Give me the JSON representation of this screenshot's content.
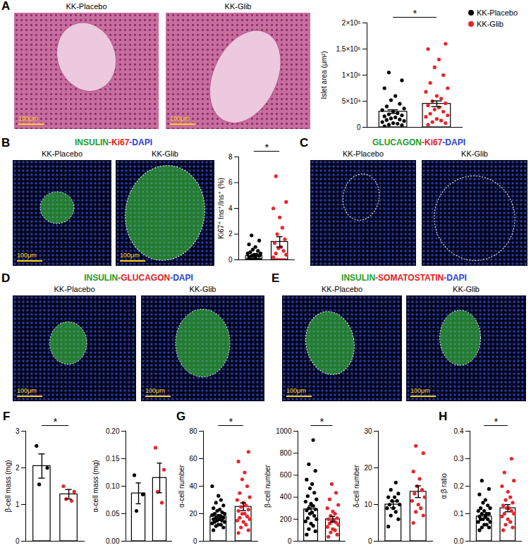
{
  "image_panels": [
    {
      "panel": "A",
      "stain": null,
      "images": [
        {
          "label": "KK-Placebo",
          "scale_bar": "100μm"
        },
        {
          "label": "KK-Glib",
          "scale_bar": "100μm"
        }
      ]
    },
    {
      "panel": "B",
      "stain": [
        {
          "text": "INSULIN",
          "color": "#1f9e1f"
        },
        {
          "text": "-Ki67",
          "color": "#e0201e"
        },
        {
          "text": "-DAPI",
          "color": "#2b3fd6"
        }
      ],
      "images": [
        {
          "label": "KK-Placebo",
          "scale_bar": "100μm"
        },
        {
          "label": "KK-Glib",
          "scale_bar": "100μm"
        }
      ]
    },
    {
      "panel": "C",
      "stain": [
        {
          "text": "GLUCAGON",
          "color": "#1f9e1f"
        },
        {
          "text": "-Ki67",
          "color": "#e0201e"
        },
        {
          "text": "-DAPI",
          "color": "#2b3fd6"
        }
      ],
      "images": [
        {
          "label": "KK-Placebo",
          "scale_bar": null
        },
        {
          "label": "KK-Glib",
          "scale_bar": null
        }
      ]
    },
    {
      "panel": "D",
      "stain": [
        {
          "text": "INSULIN",
          "color": "#1f9e1f"
        },
        {
          "text": "-GLUCAGON",
          "color": "#e0201e"
        },
        {
          "text": "-DAPI",
          "color": "#2b3fd6"
        }
      ],
      "images": [
        {
          "label": "KK-Placebo",
          "scale_bar": "100μm"
        },
        {
          "label": "KK-Glib",
          "scale_bar": "100μm"
        }
      ]
    },
    {
      "panel": "E",
      "stain": [
        {
          "text": "INSULIN",
          "color": "#1f9e1f"
        },
        {
          "text": "-SOMATOSTATIN",
          "color": "#e0201e"
        },
        {
          "text": "-DAPI",
          "color": "#2b3fd6"
        }
      ],
      "images": [
        {
          "label": "KK-Placebo",
          "scale_bar": "100μm"
        },
        {
          "label": "KK-Glib",
          "scale_bar": "100μm"
        }
      ]
    }
  ],
  "chart_data": [
    {
      "type": "bar",
      "ylabel": "Islet area (μm²)",
      "categories": [
        null,
        null
      ],
      "tick_labels": "y",
      "colors": [
        "#000000",
        "#e8252b"
      ],
      "legend": "right",
      "legend_labels": [
        "KK-Placebo",
        "KK-Glib"
      ],
      "values": [
        30000,
        45000
      ],
      "errors": [
        3500,
        5500
      ],
      "points": [
        [
          2000,
          4000,
          5000,
          7000,
          8000,
          10000,
          12000,
          14000,
          15000,
          17000,
          19000,
          21000,
          23000,
          25000,
          27000,
          30000,
          33000,
          36000,
          40000,
          45000,
          52000,
          60000,
          75000,
          90000,
          105000
        ],
        [
          5000,
          8000,
          10000,
          13000,
          16000,
          20000,
          23000,
          26000,
          30000,
          34000,
          38000,
          42000,
          46000,
          50000,
          55000,
          60000,
          68000,
          75000,
          85000,
          100000,
          115000,
          130000,
          150000,
          160000
        ]
      ],
      "ylim": [
        0,
        200000
      ],
      "yticks": [
        0,
        {
          "value": 50000,
          "label": "5×10⁴"
        },
        {
          "value": 100000,
          "label": "1×10⁵"
        },
        {
          "value": 150000,
          "label": "1.5×10⁵"
        },
        {
          "value": 200000,
          "label": "2×10⁵"
        }
      ],
      "annotation": "*"
    },
    {
      "type": "bar",
      "ylabel": "Ki67⁺ Ins⁺/Ins⁺ (%)",
      "categories": [
        null,
        null
      ],
      "tick_labels": "y",
      "colors": [
        "#000000",
        "#e8252b"
      ],
      "values": [
        0.3,
        1.4
      ],
      "errors": [
        0.1,
        0.4
      ],
      "points": [
        [
          0,
          0,
          0,
          0,
          0,
          0,
          0,
          0,
          0,
          0,
          0.2,
          0.2,
          0.3,
          0.3,
          0.4,
          0.4,
          0.5,
          0.5,
          0.6,
          0.7,
          0.8,
          1.0,
          1.2,
          1.5,
          1.9
        ],
        [
          0,
          0,
          0,
          0,
          0,
          0.2,
          0.4,
          0.5,
          0.7,
          0.9,
          1.0,
          1.3,
          1.6,
          2.0,
          2.5,
          3.3,
          4.0,
          4.5,
          6.5
        ]
      ],
      "ylim": [
        0,
        8
      ],
      "yticks": [
        0,
        2,
        4,
        6,
        8
      ],
      "annotation": "*"
    },
    {
      "panel": "F",
      "type": "bar",
      "ylabel": "β-cell mass (mg)",
      "categories": [
        null,
        null
      ],
      "tick_labels": "y",
      "colors": [
        "#000000",
        "#e8252b"
      ],
      "values": [
        2.05,
        1.28
      ],
      "errors": [
        0.33,
        0.13
      ],
      "points": [
        [
          2.6,
          2.0,
          1.55
        ],
        [
          1.5,
          1.35,
          1.15,
          1.1
        ]
      ],
      "ylim": [
        0,
        3
      ],
      "yticks": [
        0,
        1,
        2,
        3
      ],
      "annotation": "*"
    },
    {
      "type": "bar",
      "ylabel": "α-cell mass (mg)",
      "categories": [
        null,
        null
      ],
      "tick_labels": "y",
      "colors": [
        "#000000",
        "#e8252b"
      ],
      "values": [
        0.087,
        0.115
      ],
      "errors": [
        0.019,
        0.027
      ],
      "points": [
        [
          0.12,
          0.085,
          0.055
        ],
        [
          0.17,
          0.13,
          0.09,
          0.07
        ]
      ],
      "ylim": [
        0,
        0.2
      ],
      "yticks": [
        {
          "value": 0,
          "label": "0.00"
        },
        0.05,
        {
          "value": 0.1,
          "label": "0.10"
        },
        0.15,
        {
          "value": 0.2,
          "label": "0.20"
        }
      ],
      "annotation": null
    },
    {
      "panel": "G",
      "type": "bar",
      "ylabel": "α-cell number",
      "categories": [
        null,
        null
      ],
      "tick_labels": "y",
      "colors": [
        "#000000",
        "#e8252b"
      ],
      "values": [
        18,
        25
      ],
      "errors": [
        1.4,
        2.8
      ],
      "points": [
        [
          8,
          10,
          11,
          12,
          12,
          13,
          14,
          14,
          15,
          15,
          16,
          16,
          17,
          17,
          18,
          18,
          19,
          20,
          20,
          21,
          22,
          23,
          24,
          26,
          28,
          30,
          33,
          40
        ],
        [
          6,
          8,
          10,
          12,
          14,
          15,
          16,
          17,
          18,
          20,
          20,
          22,
          23,
          25,
          26,
          28,
          30,
          32,
          35,
          40,
          45,
          50,
          58,
          65
        ]
      ],
      "ylim": [
        0,
        80
      ],
      "yticks": [
        0,
        20,
        40,
        60,
        80
      ],
      "annotation": "*"
    },
    {
      "type": "bar",
      "ylabel": "β-cell number",
      "categories": [
        null,
        null
      ],
      "tick_labels": "y",
      "colors": [
        "#000000",
        "#e8252b"
      ],
      "values": [
        290,
        200
      ],
      "errors": [
        35,
        25
      ],
      "points": [
        [
          60,
          90,
          110,
          140,
          160,
          180,
          200,
          210,
          230,
          250,
          260,
          280,
          290,
          300,
          320,
          340,
          360,
          380,
          410,
          440,
          480,
          520,
          560,
          640,
          700,
          920
        ],
        [
          40,
          60,
          80,
          100,
          110,
          130,
          150,
          160,
          170,
          180,
          190,
          200,
          210,
          230,
          250,
          270,
          300,
          330,
          380,
          440,
          520
        ]
      ],
      "ylim": [
        0,
        1000
      ],
      "yticks": [
        0,
        200,
        400,
        600,
        800,
        1000
      ],
      "annotation": "*"
    },
    {
      "type": "bar",
      "ylabel": "δ-cell number",
      "categories": [
        null,
        null
      ],
      "tick_labels": "y",
      "colors": [
        "#000000",
        "#e8252b"
      ],
      "values": [
        10,
        13.5
      ],
      "errors": [
        0.9,
        1.6
      ],
      "points": [
        [
          4,
          6,
          7,
          8,
          9,
          9,
          10,
          10,
          11,
          11,
          12,
          12,
          13,
          14,
          16
        ],
        [
          5,
          7,
          8,
          9,
          10,
          11,
          12,
          13,
          14,
          15,
          17,
          19,
          24,
          26
        ]
      ],
      "ylim": [
        0,
        30
      ],
      "yticks": [
        0,
        10,
        20,
        30
      ],
      "annotation": null
    },
    {
      "panel": "H",
      "type": "bar",
      "ylabel": "α:β ratio",
      "categories": [
        null,
        null
      ],
      "tick_labels": "y",
      "colors": [
        "#000000",
        "#e8252b"
      ],
      "values": [
        0.09,
        0.12
      ],
      "errors": [
        0.007,
        0.013
      ],
      "points": [
        [
          0.04,
          0.05,
          0.05,
          0.06,
          0.06,
          0.07,
          0.07,
          0.08,
          0.08,
          0.08,
          0.09,
          0.09,
          0.1,
          0.1,
          0.1,
          0.11,
          0.11,
          0.12,
          0.12,
          0.13,
          0.14,
          0.15,
          0.17,
          0.19,
          0.22
        ],
        [
          0.04,
          0.05,
          0.06,
          0.07,
          0.08,
          0.09,
          0.1,
          0.1,
          0.11,
          0.12,
          0.12,
          0.13,
          0.14,
          0.15,
          0.16,
          0.18,
          0.2,
          0.22,
          0.25,
          0.3
        ]
      ],
      "ylim": [
        0,
        0.4
      ],
      "yticks": [
        {
          "value": 0,
          "label": "0.0"
        },
        0.1,
        0.2,
        0.3,
        0.4
      ],
      "annotation": "*"
    }
  ]
}
